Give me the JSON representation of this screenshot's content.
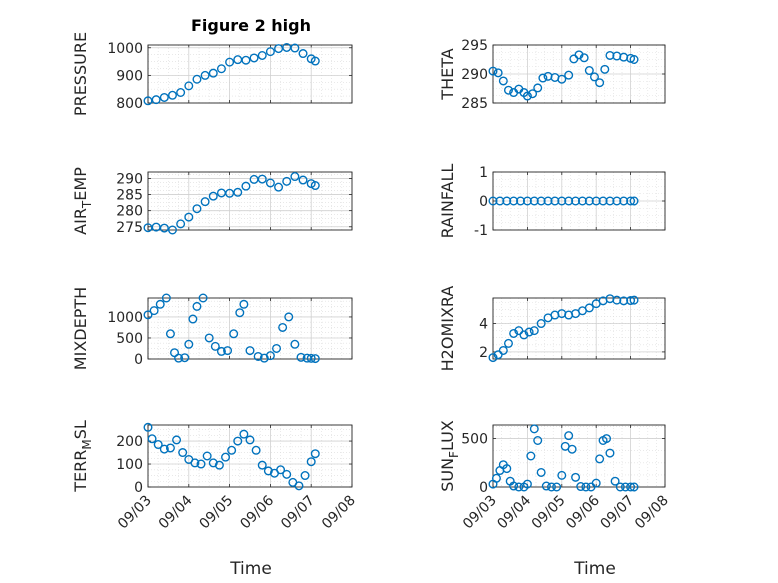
{
  "figure": {
    "title": "Figure 2 high",
    "xlabel": "Time",
    "marker_color": "#0072bd"
  },
  "chart_data": [
    {
      "type": "scatter",
      "ylabel_main": "PRESSURE",
      "ylabel_sub": "",
      "yticks": [
        800,
        900,
        1000
      ],
      "ylim": [
        800,
        1010
      ],
      "xticks": [
        "09/03",
        "09/04",
        "09/05",
        "09/06",
        "09/07",
        "09/08"
      ],
      "x": [
        3.0,
        3.2,
        3.4,
        3.6,
        3.8,
        4.0,
        4.2,
        4.4,
        4.6,
        4.8,
        5.0,
        5.2,
        5.4,
        5.6,
        5.8,
        6.0,
        6.2,
        6.4,
        6.6,
        6.8,
        7.0,
        7.1
      ],
      "y": [
        808,
        812,
        820,
        828,
        838,
        862,
        886,
        900,
        908,
        924,
        948,
        957,
        955,
        963,
        972,
        986,
        997,
        1001,
        999,
        979,
        960,
        952
      ]
    },
    {
      "type": "scatter",
      "ylabel_main": "THETA",
      "ylabel_sub": "",
      "yticks": [
        285,
        290,
        295
      ],
      "ylim": [
        285,
        295
      ],
      "xticks": [
        "09/03",
        "09/04",
        "09/05",
        "09/06",
        "09/07",
        "09/08"
      ],
      "x": [
        3.0,
        3.15,
        3.3,
        3.45,
        3.6,
        3.75,
        3.9,
        4.0,
        4.15,
        4.3,
        4.45,
        4.6,
        4.8,
        5.0,
        5.2,
        5.35,
        5.5,
        5.65,
        5.8,
        5.95,
        6.1,
        6.25,
        6.4,
        6.6,
        6.8,
        7.0,
        7.1
      ],
      "y": [
        290.5,
        290.2,
        288.8,
        287.2,
        286.8,
        287.4,
        286.8,
        286.2,
        286.6,
        287.6,
        289.3,
        289.6,
        289.4,
        289.1,
        289.8,
        292.6,
        293.3,
        292.8,
        290.6,
        289.5,
        288.5,
        290.8,
        293.2,
        293.1,
        292.9,
        292.7,
        292.5
      ]
    },
    {
      "type": "scatter",
      "ylabel_main": "AIR",
      "ylabel_sub": "T",
      "ylabel_tail": "EMP",
      "yticks": [
        275,
        280,
        285,
        290
      ],
      "ylim": [
        274,
        292
      ],
      "xticks": [
        "09/03",
        "09/04",
        "09/05",
        "09/06",
        "09/07",
        "09/08"
      ],
      "x": [
        3.0,
        3.2,
        3.4,
        3.6,
        3.8,
        4.0,
        4.2,
        4.4,
        4.6,
        4.8,
        5.0,
        5.2,
        5.4,
        5.6,
        5.8,
        6.0,
        6.2,
        6.4,
        6.6,
        6.8,
        7.0,
        7.1
      ],
      "y": [
        274.7,
        274.9,
        274.6,
        274.0,
        275.9,
        278.0,
        280.6,
        282.8,
        284.5,
        285.5,
        285.4,
        285.7,
        287.6,
        289.7,
        289.8,
        288.6,
        287.3,
        289.1,
        290.6,
        289.5,
        288.4,
        287.8
      ]
    },
    {
      "type": "scatter",
      "ylabel_main": "RAINFALL",
      "ylabel_sub": "",
      "yticks": [
        -1,
        0,
        1
      ],
      "ylim": [
        -1,
        1
      ],
      "xticks": [
        "09/03",
        "09/04",
        "09/05",
        "09/06",
        "09/07",
        "09/08"
      ],
      "x": [
        3.0,
        3.2,
        3.4,
        3.6,
        3.8,
        4.0,
        4.2,
        4.4,
        4.6,
        4.8,
        5.0,
        5.2,
        5.4,
        5.6,
        5.8,
        6.0,
        6.2,
        6.4,
        6.6,
        6.8,
        7.0,
        7.1
      ],
      "y": [
        0,
        0,
        0,
        0,
        0,
        0,
        0,
        0,
        0,
        0,
        0,
        0,
        0,
        0,
        0,
        0,
        0,
        0,
        0,
        0,
        0,
        0
      ]
    },
    {
      "type": "scatter",
      "ylabel_main": "MIXDEPTH",
      "ylabel_sub": "",
      "yticks": [
        0,
        500,
        1000
      ],
      "ylim": [
        0,
        1450
      ],
      "xticks": [
        "09/03",
        "09/04",
        "09/05",
        "09/06",
        "09/07",
        "09/08"
      ],
      "x": [
        3.0,
        3.15,
        3.3,
        3.45,
        3.55,
        3.65,
        3.75,
        3.9,
        4.0,
        4.1,
        4.2,
        4.35,
        4.5,
        4.65,
        4.8,
        4.95,
        5.1,
        5.25,
        5.35,
        5.5,
        5.7,
        5.85,
        6.0,
        6.15,
        6.3,
        6.45,
        6.6,
        6.75,
        6.9,
        7.0,
        7.1
      ],
      "y": [
        1050,
        1150,
        1300,
        1450,
        600,
        150,
        20,
        30,
        350,
        950,
        1250,
        1450,
        500,
        300,
        180,
        200,
        600,
        1100,
        1300,
        200,
        60,
        20,
        80,
        250,
        750,
        1000,
        350,
        40,
        20,
        15,
        10
      ]
    },
    {
      "type": "scatter",
      "ylabel_main": "H2OMIXRA",
      "ylabel_sub": "",
      "yticks": [
        2,
        4
      ],
      "ylim": [
        1.5,
        5.8
      ],
      "xticks": [
        "09/03",
        "09/04",
        "09/05",
        "09/06",
        "09/07",
        "09/08"
      ],
      "x": [
        3.0,
        3.15,
        3.3,
        3.45,
        3.6,
        3.75,
        3.9,
        4.05,
        4.2,
        4.4,
        4.6,
        4.8,
        5.0,
        5.2,
        5.4,
        5.6,
        5.8,
        6.0,
        6.2,
        6.4,
        6.6,
        6.8,
        7.0,
        7.1
      ],
      "y": [
        1.6,
        1.8,
        2.1,
        2.6,
        3.3,
        3.5,
        3.2,
        3.4,
        3.5,
        4.0,
        4.4,
        4.6,
        4.7,
        4.6,
        4.7,
        4.9,
        5.1,
        5.4,
        5.6,
        5.75,
        5.65,
        5.6,
        5.62,
        5.65
      ]
    },
    {
      "type": "scatter",
      "ylabel_main": "TERR",
      "ylabel_sub": "M",
      "ylabel_tail": "SL",
      "yticks": [
        0,
        100,
        200
      ],
      "ylim": [
        0,
        270
      ],
      "xticks": [
        "09/03",
        "09/04",
        "09/05",
        "09/06",
        "09/07",
        "09/08"
      ],
      "x": [
        3.0,
        3.1,
        3.25,
        3.4,
        3.55,
        3.7,
        3.85,
        4.0,
        4.15,
        4.3,
        4.45,
        4.6,
        4.75,
        4.9,
        5.05,
        5.2,
        5.35,
        5.5,
        5.65,
        5.8,
        5.95,
        6.1,
        6.25,
        6.4,
        6.55,
        6.7,
        6.85,
        7.0,
        7.1
      ],
      "y": [
        260,
        210,
        185,
        165,
        170,
        205,
        150,
        120,
        105,
        100,
        135,
        105,
        95,
        130,
        160,
        200,
        230,
        205,
        160,
        95,
        70,
        60,
        75,
        55,
        20,
        5,
        50,
        110,
        145
      ]
    },
    {
      "type": "scatter",
      "ylabel_main": "SUN",
      "ylabel_sub": "F",
      "ylabel_tail": "LUX",
      "yticks": [
        0,
        500
      ],
      "ylim": [
        0,
        640
      ],
      "xticks": [
        "09/03",
        "09/04",
        "09/05",
        "09/06",
        "09/07",
        "09/08"
      ],
      "x": [
        3.0,
        3.1,
        3.2,
        3.3,
        3.4,
        3.5,
        3.6,
        3.75,
        3.9,
        4.0,
        4.1,
        4.2,
        4.3,
        4.4,
        4.55,
        4.7,
        4.85,
        5.0,
        5.1,
        5.2,
        5.3,
        5.4,
        5.55,
        5.7,
        5.85,
        6.0,
        6.1,
        6.2,
        6.3,
        6.4,
        6.55,
        6.7,
        6.85,
        7.0,
        7.1
      ],
      "y": [
        30,
        90,
        170,
        230,
        190,
        60,
        10,
        0,
        0,
        30,
        320,
        600,
        480,
        150,
        10,
        0,
        0,
        120,
        420,
        530,
        390,
        100,
        5,
        0,
        0,
        40,
        290,
        480,
        500,
        350,
        60,
        0,
        0,
        0,
        0
      ]
    }
  ]
}
